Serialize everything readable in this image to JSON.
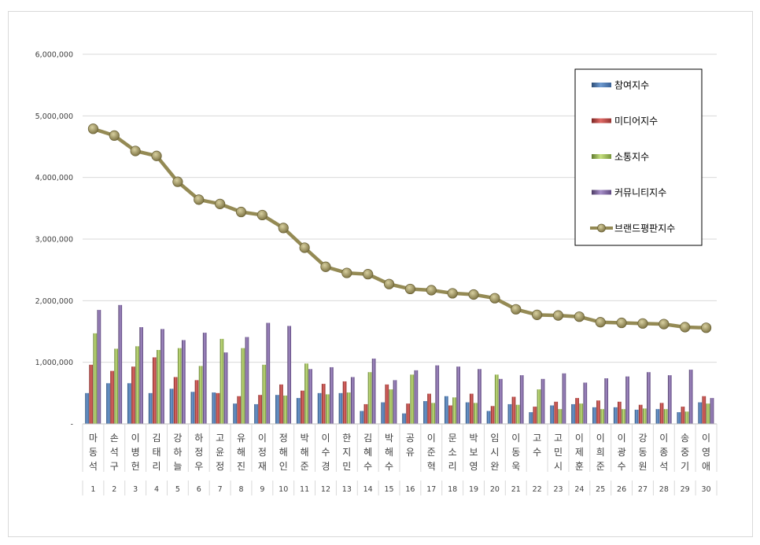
{
  "chart_data": {
    "type": "bar",
    "categories": [
      "마동석",
      "손석구",
      "이병헌",
      "김태리",
      "강하늘",
      "하정우",
      "고윤정",
      "유해진",
      "이정재",
      "정해인",
      "박해준",
      "이수경",
      "한지민",
      "김혜수",
      "박해수",
      "공유",
      "이준혁",
      "문소리",
      "박보영",
      "임시완",
      "이동욱",
      "고수",
      "고민시",
      "이제훈",
      "이희준",
      "이광수",
      "강동원",
      "이종석",
      "송중기",
      "이영애"
    ],
    "ranks": [
      "1",
      "2",
      "3",
      "4",
      "5",
      "6",
      "7",
      "8",
      "9",
      "10",
      "11",
      "12",
      "13",
      "14",
      "15",
      "16",
      "17",
      "18",
      "19",
      "20",
      "21",
      "22",
      "23",
      "24",
      "25",
      "26",
      "27",
      "28",
      "29",
      "30"
    ],
    "series": [
      {
        "name": "참여지수",
        "type": "bar",
        "color": "#4f81bd",
        "values": [
          500000,
          660000,
          660000,
          500000,
          570000,
          520000,
          510000,
          330000,
          320000,
          470000,
          420000,
          500000,
          500000,
          210000,
          350000,
          170000,
          370000,
          450000,
          350000,
          210000,
          320000,
          190000,
          300000,
          320000,
          270000,
          270000,
          230000,
          240000,
          190000,
          350000
        ]
      },
      {
        "name": "미디어지수",
        "type": "bar",
        "color": "#c0504d",
        "values": [
          960000,
          860000,
          930000,
          1080000,
          760000,
          710000,
          500000,
          450000,
          470000,
          640000,
          540000,
          650000,
          690000,
          320000,
          640000,
          330000,
          490000,
          300000,
          490000,
          290000,
          440000,
          280000,
          360000,
          420000,
          380000,
          360000,
          310000,
          340000,
          280000,
          450000
        ]
      },
      {
        "name": "소통지수",
        "type": "bar",
        "color": "#9bbb59",
        "values": [
          1470000,
          1220000,
          1260000,
          1200000,
          1230000,
          940000,
          1380000,
          1230000,
          960000,
          460000,
          980000,
          480000,
          510000,
          840000,
          560000,
          800000,
          340000,
          430000,
          340000,
          800000,
          310000,
          560000,
          240000,
          330000,
          240000,
          240000,
          250000,
          240000,
          200000,
          330000
        ]
      },
      {
        "name": "커뮤니티지수",
        "type": "bar",
        "color": "#8064a2",
        "values": [
          1850000,
          1930000,
          1570000,
          1540000,
          1360000,
          1480000,
          1160000,
          1410000,
          1640000,
          1590000,
          890000,
          920000,
          760000,
          1060000,
          710000,
          870000,
          950000,
          930000,
          890000,
          730000,
          790000,
          730000,
          820000,
          670000,
          740000,
          770000,
          840000,
          790000,
          880000,
          420000
        ]
      },
      {
        "name": "브랜드평판지수",
        "type": "line",
        "color": "#948a54",
        "values": [
          4790000,
          4680000,
          4430000,
          4350000,
          3930000,
          3640000,
          3570000,
          3440000,
          3390000,
          3180000,
          2860000,
          2550000,
          2450000,
          2430000,
          2270000,
          2190000,
          2170000,
          2120000,
          2100000,
          2040000,
          1860000,
          1770000,
          1760000,
          1740000,
          1650000,
          1640000,
          1630000,
          1620000,
          1570000,
          1560000
        ]
      }
    ],
    "yticks": [
      "-",
      "1,000,000",
      "2,000,000",
      "3,000,000",
      "4,000,000",
      "5,000,000",
      "6,000,000"
    ],
    "ylim": [
      0,
      6000000
    ],
    "grid": true,
    "legend_position": "top-right"
  }
}
